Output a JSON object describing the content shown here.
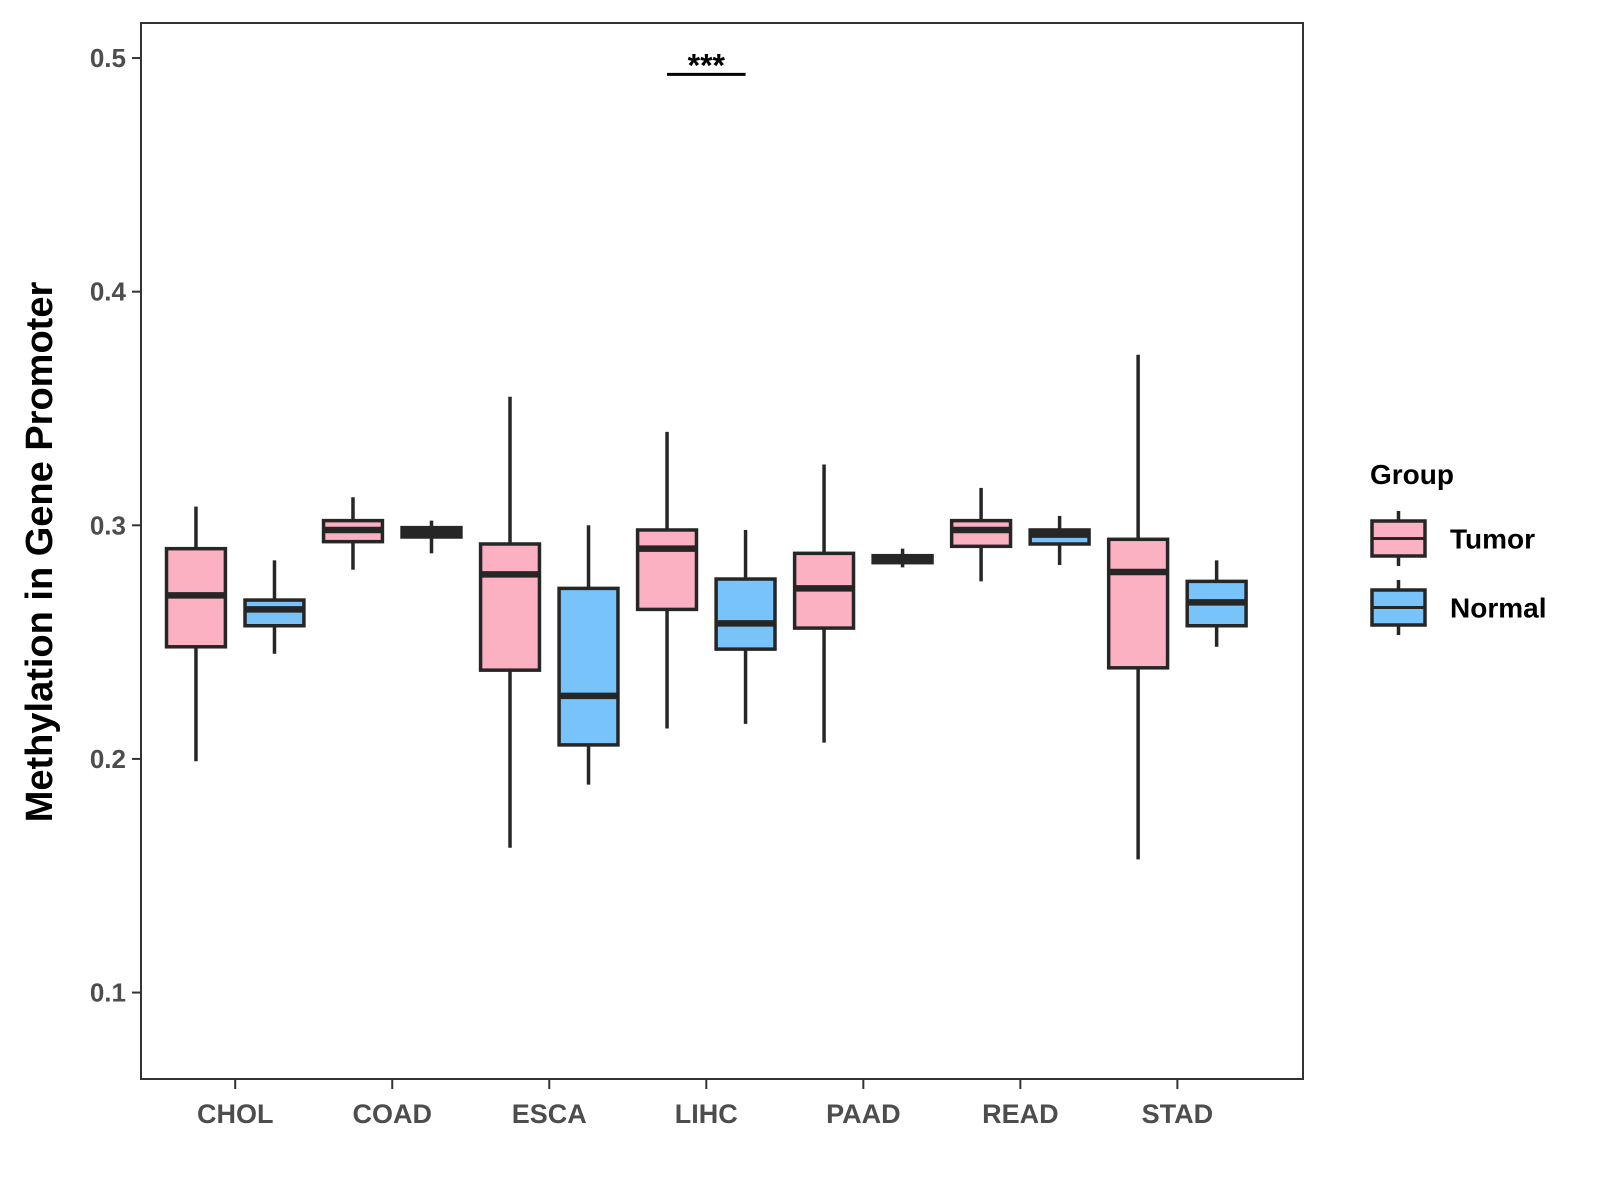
{
  "chart_data": {
    "type": "boxplot",
    "ylabel": "Methylation in Gene Promoter",
    "xlabel": "",
    "ylim": [
      0.063,
      0.515
    ],
    "yticks": [
      0.1,
      0.2,
      0.3,
      0.4,
      0.5
    ],
    "ytick_labels": [
      "0.1",
      "0.2",
      "0.3",
      "0.4",
      "0.5"
    ],
    "categories": [
      "CHOL",
      "COAD",
      "ESCA",
      "LIHC",
      "PAAD",
      "READ",
      "STAD"
    ],
    "legend": {
      "title": "Group",
      "position": "right",
      "entries": [
        {
          "name": "Tumor",
          "color": "#FCB1C2"
        },
        {
          "name": "Normal",
          "color": "#78C3FA"
        }
      ]
    },
    "series": [
      {
        "name": "Tumor",
        "color": "#FCB1C2",
        "boxes": [
          {
            "category": "CHOL",
            "min": 0.199,
            "q1": 0.248,
            "median": 0.27,
            "q3": 0.29,
            "max": 0.308
          },
          {
            "category": "COAD",
            "min": 0.281,
            "q1": 0.293,
            "median": 0.298,
            "q3": 0.302,
            "max": 0.312
          },
          {
            "category": "ESCA",
            "min": 0.162,
            "q1": 0.238,
            "median": 0.279,
            "q3": 0.292,
            "max": 0.355
          },
          {
            "category": "LIHC",
            "min": 0.213,
            "q1": 0.264,
            "median": 0.29,
            "q3": 0.298,
            "max": 0.34
          },
          {
            "category": "PAAD",
            "min": 0.207,
            "q1": 0.256,
            "median": 0.273,
            "q3": 0.288,
            "max": 0.326
          },
          {
            "category": "READ",
            "min": 0.276,
            "q1": 0.291,
            "median": 0.298,
            "q3": 0.302,
            "max": 0.316
          },
          {
            "category": "STAD",
            "min": 0.157,
            "q1": 0.239,
            "median": 0.28,
            "q3": 0.294,
            "max": 0.373
          }
        ]
      },
      {
        "name": "Normal",
        "color": "#78C3FA",
        "boxes": [
          {
            "category": "CHOL",
            "min": 0.245,
            "q1": 0.257,
            "median": 0.264,
            "q3": 0.268,
            "max": 0.285
          },
          {
            "category": "COAD",
            "min": 0.288,
            "q1": 0.295,
            "median": 0.297,
            "q3": 0.299,
            "max": 0.302
          },
          {
            "category": "ESCA",
            "min": 0.189,
            "q1": 0.206,
            "median": 0.227,
            "q3": 0.273,
            "max": 0.3
          },
          {
            "category": "LIHC",
            "min": 0.215,
            "q1": 0.247,
            "median": 0.258,
            "q3": 0.277,
            "max": 0.298
          },
          {
            "category": "PAAD",
            "min": 0.282,
            "q1": 0.284,
            "median": 0.286,
            "q3": 0.287,
            "max": 0.29
          },
          {
            "category": "READ",
            "min": 0.283,
            "q1": 0.292,
            "median": 0.296,
            "q3": 0.298,
            "max": 0.304
          },
          {
            "category": "STAD",
            "min": 0.248,
            "q1": 0.257,
            "median": 0.267,
            "q3": 0.276,
            "max": 0.285
          }
        ]
      }
    ],
    "annotations": [
      {
        "category": "LIHC",
        "text": "***",
        "y": 0.493
      }
    ],
    "grid": false
  }
}
